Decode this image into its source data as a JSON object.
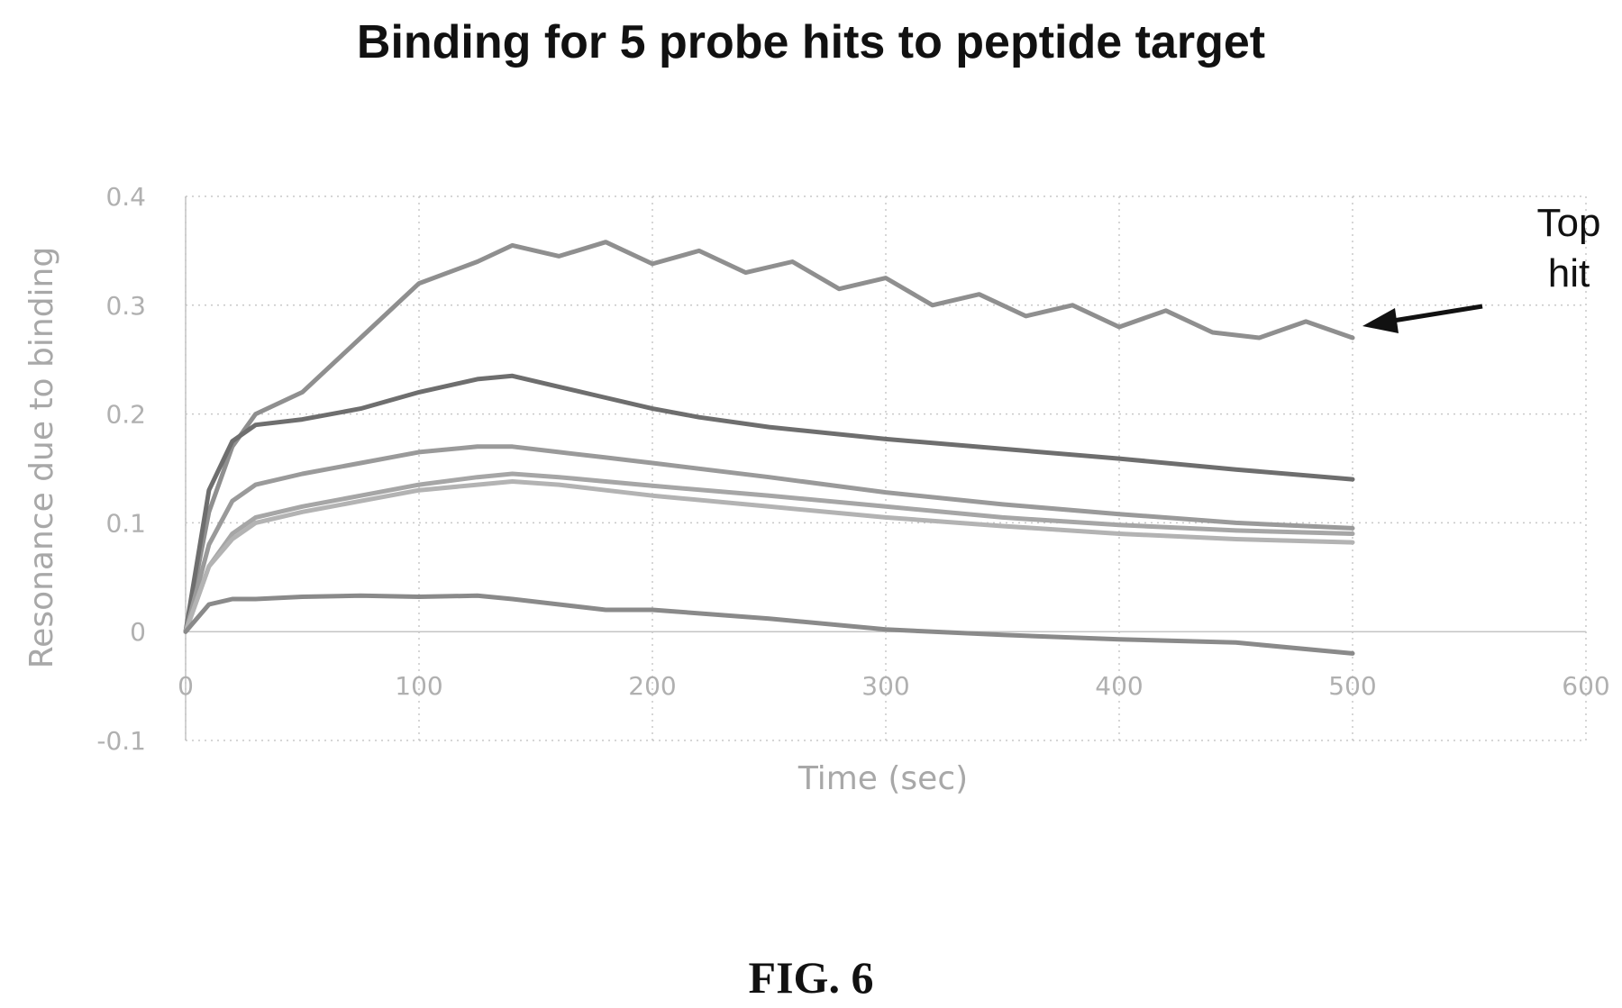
{
  "figure_label": "FIG. 6",
  "chart_data": {
    "type": "line",
    "title": "Binding for 5 probe hits to peptide target",
    "xlabel": "Time (sec)",
    "ylabel": "Resonance due to binding",
    "xlim": [
      0,
      600
    ],
    "ylim": [
      -0.1,
      0.4
    ],
    "x_ticks": [
      "0",
      "100",
      "200",
      "300",
      "400",
      "500",
      "600"
    ],
    "y_ticks": [
      "-0.1",
      "0",
      "0.1",
      "0.2",
      "0.3",
      "0.4"
    ],
    "grid": true,
    "annotation": {
      "lines": [
        "Top",
        "hit"
      ],
      "points_to_series": 0
    },
    "series": [
      {
        "color": "#8f8f8f",
        "x": [
          0,
          10,
          20,
          30,
          50,
          75,
          100,
          125,
          140,
          160,
          180,
          200,
          220,
          240,
          260,
          280,
          300,
          320,
          340,
          360,
          380,
          400,
          420,
          440,
          460,
          480,
          500
        ],
        "y": [
          0.0,
          0.11,
          0.17,
          0.2,
          0.22,
          0.27,
          0.32,
          0.34,
          0.355,
          0.345,
          0.358,
          0.338,
          0.35,
          0.33,
          0.34,
          0.315,
          0.325,
          0.3,
          0.31,
          0.29,
          0.3,
          0.28,
          0.295,
          0.275,
          0.27,
          0.285,
          0.27
        ]
      },
      {
        "color": "#6e6e6e",
        "x": [
          0,
          10,
          20,
          30,
          50,
          75,
          100,
          125,
          140,
          160,
          180,
          200,
          220,
          250,
          300,
          350,
          400,
          450,
          500
        ],
        "y": [
          0.0,
          0.13,
          0.175,
          0.19,
          0.195,
          0.205,
          0.22,
          0.232,
          0.235,
          0.225,
          0.215,
          0.205,
          0.197,
          0.188,
          0.177,
          0.168,
          0.159,
          0.149,
          0.14
        ]
      },
      {
        "color": "#9a9a9a",
        "x": [
          0,
          10,
          20,
          30,
          50,
          75,
          100,
          125,
          140,
          160,
          180,
          200,
          250,
          300,
          350,
          400,
          450,
          500
        ],
        "y": [
          0.0,
          0.08,
          0.12,
          0.135,
          0.145,
          0.155,
          0.165,
          0.17,
          0.17,
          0.165,
          0.16,
          0.155,
          0.142,
          0.128,
          0.117,
          0.108,
          0.1,
          0.095
        ]
      },
      {
        "color": "#a6a6a6",
        "x": [
          0,
          10,
          20,
          30,
          50,
          75,
          100,
          125,
          140,
          160,
          180,
          200,
          250,
          300,
          350,
          400,
          450,
          500
        ],
        "y": [
          0.0,
          0.06,
          0.09,
          0.105,
          0.115,
          0.125,
          0.135,
          0.142,
          0.145,
          0.142,
          0.138,
          0.134,
          0.125,
          0.115,
          0.105,
          0.098,
          0.093,
          0.09
        ]
      },
      {
        "color": "#b3b3b3",
        "x": [
          0,
          10,
          20,
          30,
          50,
          75,
          100,
          125,
          140,
          160,
          180,
          200,
          250,
          300,
          350,
          400,
          450,
          500
        ],
        "y": [
          0.0,
          0.06,
          0.085,
          0.1,
          0.11,
          0.12,
          0.13,
          0.135,
          0.138,
          0.135,
          0.13,
          0.125,
          0.115,
          0.105,
          0.097,
          0.09,
          0.085,
          0.082
        ]
      },
      {
        "color": "#8a8a8a",
        "x": [
          0,
          10,
          20,
          30,
          50,
          75,
          100,
          125,
          140,
          160,
          180,
          200,
          250,
          300,
          350,
          400,
          450,
          500
        ],
        "y": [
          0.0,
          0.025,
          0.03,
          0.03,
          0.032,
          0.033,
          0.032,
          0.033,
          0.03,
          0.025,
          0.02,
          0.02,
          0.012,
          0.002,
          -0.003,
          -0.007,
          -0.01,
          -0.02
        ]
      }
    ]
  }
}
